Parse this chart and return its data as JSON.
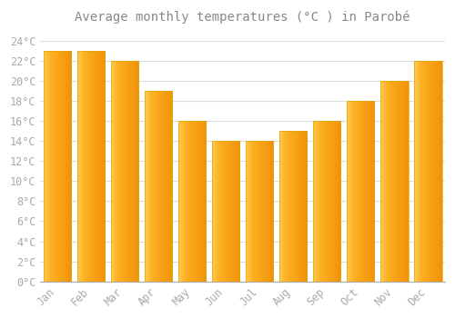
{
  "title": "Average monthly temperatures (°C ) in Parobé",
  "months": [
    "Jan",
    "Feb",
    "Mar",
    "Apr",
    "May",
    "Jun",
    "Jul",
    "Aug",
    "Sep",
    "Oct",
    "Nov",
    "Dec"
  ],
  "values": [
    23,
    23,
    22,
    19,
    16,
    14,
    14,
    15,
    16,
    18,
    20,
    22
  ],
  "bar_color_main": "#FDB022",
  "bar_color_light": "#FFCC55",
  "bar_color_dark": "#F0920A",
  "background_color": "#FFFFFF",
  "plot_bg_color": "#FFFFFF",
  "grid_color": "#DDDDDD",
  "ylim": [
    0,
    25
  ],
  "yticks": [
    0,
    2,
    4,
    6,
    8,
    10,
    12,
    14,
    16,
    18,
    20,
    22,
    24
  ],
  "tick_label_color": "#AAAAAA",
  "title_color": "#888888",
  "title_fontsize": 10,
  "tick_fontsize": 8.5,
  "bar_width": 0.82
}
